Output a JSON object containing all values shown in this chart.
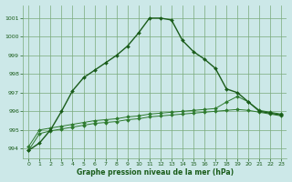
{
  "background_color": "#cce8e8",
  "grid_color": "#7aaa7a",
  "line_color_main": "#1a5c1a",
  "line_color_flat": "#2d7a2d",
  "marker": "D",
  "marker_size": 2,
  "title": "Graphe pression niveau de la mer (hPa)",
  "xlim": [
    -0.5,
    23.5
  ],
  "ylim": [
    993.5,
    1001.7
  ],
  "yticks": [
    994,
    995,
    996,
    997,
    998,
    999,
    1000,
    1001
  ],
  "xticks": [
    0,
    1,
    2,
    3,
    4,
    5,
    6,
    7,
    8,
    9,
    10,
    11,
    12,
    13,
    14,
    15,
    16,
    17,
    18,
    19,
    20,
    21,
    22,
    23
  ],
  "series_main": {
    "x": [
      0,
      1,
      2,
      3,
      4,
      5,
      6,
      7,
      8,
      9,
      10,
      11,
      12,
      13,
      14,
      15,
      16,
      17,
      18,
      19,
      20,
      21,
      22,
      23
    ],
    "y": [
      993.9,
      994.3,
      995.0,
      996.0,
      997.1,
      997.8,
      998.2,
      998.6,
      999.0,
      999.5,
      1000.2,
      1001.0,
      1001.0,
      1000.9,
      999.8,
      999.2,
      998.8,
      998.3,
      997.2,
      997.0,
      996.5,
      996.0,
      995.9,
      995.8
    ]
  },
  "series_flat1": {
    "x": [
      0,
      1,
      2,
      3,
      4,
      5,
      6,
      7,
      8,
      9,
      10,
      11,
      12,
      13,
      14,
      15,
      16,
      17,
      18,
      19,
      20,
      21,
      22,
      23
    ],
    "y": [
      994.1,
      995.0,
      995.1,
      995.2,
      995.3,
      995.4,
      995.5,
      995.55,
      995.6,
      995.7,
      995.75,
      995.85,
      995.9,
      995.95,
      996.0,
      996.05,
      996.1,
      996.15,
      996.5,
      996.8,
      996.5,
      996.05,
      995.95,
      995.85
    ]
  },
  "series_flat2": {
    "x": [
      0,
      1,
      2,
      3,
      4,
      5,
      6,
      7,
      8,
      9,
      10,
      11,
      12,
      13,
      14,
      15,
      16,
      17,
      18,
      19,
      20,
      21,
      22,
      23
    ],
    "y": [
      993.9,
      994.8,
      994.95,
      995.05,
      995.15,
      995.25,
      995.35,
      995.4,
      995.45,
      995.55,
      995.6,
      995.7,
      995.75,
      995.8,
      995.85,
      995.9,
      995.95,
      996.0,
      996.05,
      996.1,
      996.05,
      995.95,
      995.85,
      995.75
    ]
  }
}
